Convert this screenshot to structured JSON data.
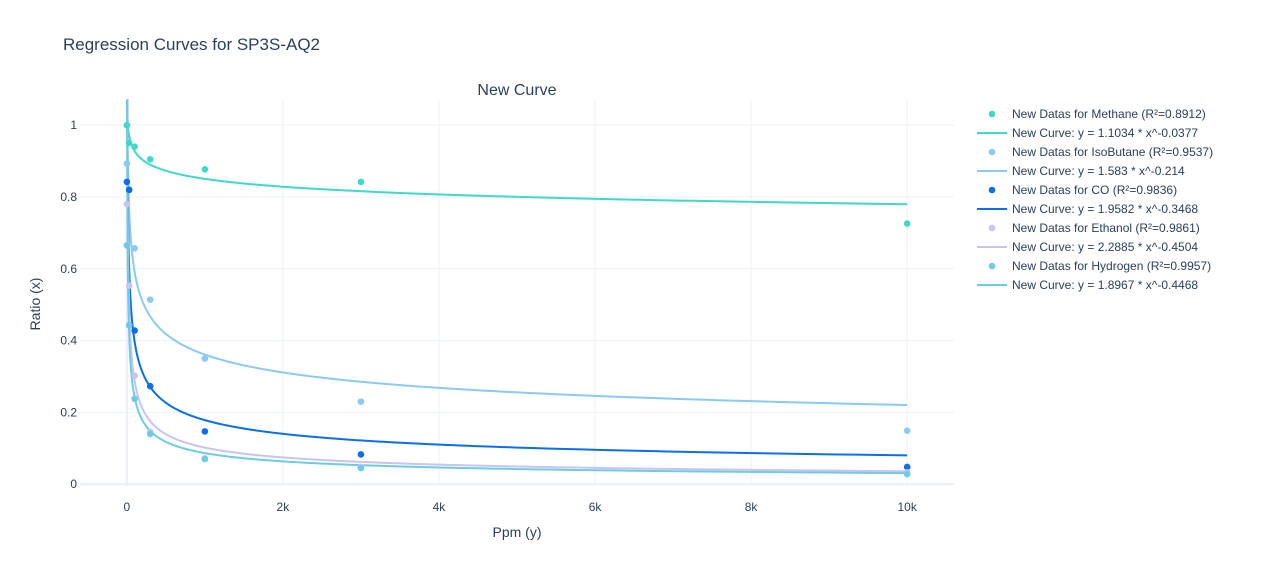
{
  "chart_data": {
    "type": "scatter",
    "title": "Regression Curves for SP3S-AQ2",
    "subtitle": "New Curve",
    "xlabel": "Ppm (y)",
    "ylabel": "Ratio (x)",
    "xlim": [
      -600,
      10600
    ],
    "ylim": [
      -0.005,
      1.07
    ],
    "xticks": [
      0,
      2000,
      4000,
      6000,
      8000,
      10000
    ],
    "xtick_labels": [
      "0",
      "2k",
      "4k",
      "6k",
      "8k",
      "10k"
    ],
    "yticks": [
      0,
      0.2,
      0.4,
      0.6,
      0.8,
      1
    ],
    "ytick_labels": [
      "0",
      "0.2",
      "0.4",
      "0.6",
      "0.8",
      "1"
    ],
    "grid": true,
    "legend_position": "right",
    "series": [
      {
        "name": "New Datas for Methane (R²=0.8912)",
        "mode": "markers",
        "color": "#40d9c9",
        "x": [
          1,
          30,
          100,
          300,
          1000,
          3000,
          10000
        ],
        "y": [
          1.0,
          0.95,
          0.94,
          0.905,
          0.877,
          0.842,
          0.726
        ]
      },
      {
        "name": "New Curve: y = 1.1034 * x^-0.0377",
        "mode": "curve",
        "color": "#40d9c9",
        "a": 1.1034,
        "b": -0.0377,
        "x_range": [
          1,
          10000
        ]
      },
      {
        "name": "New Datas for IsoButane (R²=0.9537)",
        "mode": "markers",
        "color": "#89cbf4",
        "x": [
          1,
          30,
          100,
          300,
          1000,
          3000,
          10000
        ],
        "y": [
          0.893,
          0.819,
          0.657,
          0.514,
          0.35,
          0.23,
          0.149
        ]
      },
      {
        "name": "New Curve: y = 1.583 * x^-0.214",
        "mode": "curve",
        "color": "#89cbf4",
        "a": 1.583,
        "b": -0.214,
        "x_range": [
          1,
          10000
        ]
      },
      {
        "name": "New Datas for CO (R²=0.9836)",
        "mode": "markers",
        "color": "#0a6fe8",
        "x": [
          1,
          30,
          100,
          300,
          1000,
          3000,
          10000
        ],
        "y": [
          0.842,
          0.82,
          0.428,
          0.273,
          0.147,
          0.083,
          0.048
        ]
      },
      {
        "name": "New Curve: y = 1.9582 * x^-0.3468",
        "mode": "curve",
        "color": "#0a6fe8",
        "a": 1.9582,
        "b": -0.3468,
        "x_range": [
          1,
          10000
        ]
      },
      {
        "name": "New Datas for Ethanol (R²=0.9861)",
        "mode": "markers",
        "color": "#c7c4f2",
        "x": [
          1,
          30,
          100,
          300,
          1000,
          3000,
          10000
        ],
        "y": [
          0.78,
          0.553,
          0.302,
          0.146,
          0.072,
          0.048,
          0.033
        ]
      },
      {
        "name": "New Curve: y = 2.2885 * x^-0.4504",
        "mode": "curve",
        "color": "#c7c4f2",
        "a": 2.2885,
        "b": -0.4504,
        "x_range": [
          1,
          10000
        ]
      },
      {
        "name": "New Datas for Hydrogen (R²=0.9957)",
        "mode": "markers",
        "color": "#6dcbe6",
        "x": [
          1,
          30,
          100,
          300,
          1000,
          3000,
          10000
        ],
        "y": [
          0.665,
          0.443,
          0.238,
          0.14,
          0.07,
          0.045,
          0.028
        ]
      },
      {
        "name": "New Curve: y = 1.8967 * x^-0.4468",
        "mode": "curve",
        "color": "#6dcbe6",
        "a": 1.8967,
        "b": -0.4468,
        "x_range": [
          1,
          10000
        ]
      }
    ]
  }
}
